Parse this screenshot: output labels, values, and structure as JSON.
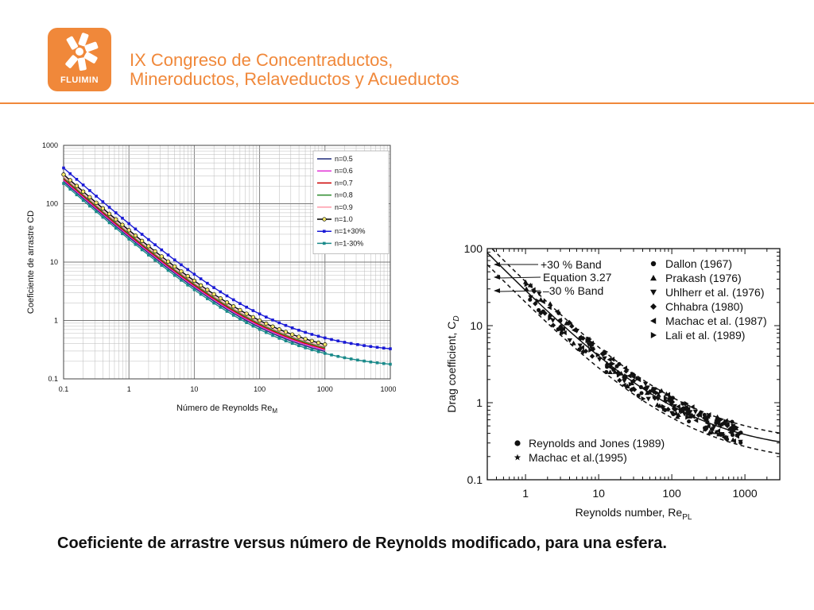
{
  "header": {
    "logo_text": "FLUIMIN",
    "line1": "IX Congreso de Concentraductos,",
    "line2": "Mineroductos, Relaveductos y Acueductos"
  },
  "caption": "Coeficiente de arrastre versus número de Reynolds modificado, para una esfera.",
  "colors": {
    "accent": "#f0883a"
  },
  "chart_data": [
    {
      "type": "line",
      "x_scale": "log",
      "y_scale": "log",
      "xlim": [
        0.1,
        10000
      ],
      "ylim": [
        0.1,
        1000
      ],
      "grid": true,
      "legend_position": "top-right",
      "ylabel": "Coeficiente de arrastre CD",
      "xlabel_main": "Número de Reynolds Re",
      "xlabel_sub": "M",
      "x_ticks": [
        "0.1",
        "1",
        "10",
        "100",
        "1000",
        "10000"
      ],
      "y_ticks": [
        "0.1",
        "1",
        "10",
        "100",
        "1000"
      ],
      "series": [
        {
          "name": "n=0.5",
          "color": "#1f2a7a",
          "factor": 0.95,
          "xmax": 1000,
          "marker": "none"
        },
        {
          "name": "n=0.6",
          "color": "#e233d6",
          "factor": 1.0,
          "xmax": 1000,
          "marker": "none"
        },
        {
          "name": "n=0.7",
          "color": "#cc0000",
          "factor": 1.05,
          "xmax": 1000,
          "marker": "none"
        },
        {
          "name": "n=0.8",
          "color": "#2a8a2a",
          "factor": 1.1,
          "xmax": 1000,
          "marker": "none"
        },
        {
          "name": "n=0.9",
          "color": "#ff9aa8",
          "factor": 1.15,
          "xmax": 1000,
          "marker": "none"
        },
        {
          "name": "n=1.0",
          "color": "#000000",
          "factor": 1.25,
          "xmax": 1000,
          "marker": "circle-yellow"
        },
        {
          "name": "n=1+30%",
          "color": "#1a1ad6",
          "factor": 1.62,
          "xmax": 10000,
          "marker": "square"
        },
        {
          "name": "n=1-30%",
          "color": "#1a8a8a",
          "factor": 0.88,
          "xmax": 10000,
          "marker": "square"
        }
      ]
    },
    {
      "type": "scatter",
      "x_scale": "log",
      "y_scale": "log",
      "xlim": [
        0.3,
        3000
      ],
      "ylim": [
        0.1,
        100
      ],
      "xlabel_main": "Reynolds number, Re",
      "xlabel_sub": "PL",
      "ylabel_main": "Drag coefficient, C",
      "ylabel_sub": "D",
      "x_ticks": [
        "1",
        "10",
        "100",
        "1000"
      ],
      "y_ticks": [
        "0.1",
        "1",
        "10",
        "100"
      ],
      "band_labels": [
        "+30 % Band",
        "Equation 3.27",
        "–30 % Band"
      ],
      "legend_top": [
        {
          "name": "Dallon (1967)",
          "marker": "circle"
        },
        {
          "name": "Prakash (1976)",
          "marker": "triangle-up"
        },
        {
          "name": "Uhlherr et al. (1976)",
          "marker": "triangle-down"
        },
        {
          "name": "Chhabra (1980)",
          "marker": "diamond"
        },
        {
          "name": "Machac et al. (1987)",
          "marker": "triangle-left"
        },
        {
          "name": "Lali et al. (1989)",
          "marker": "triangle-right"
        }
      ],
      "legend_bottom": [
        {
          "name": "Reynolds and Jones (1989)",
          "marker": "hexagon"
        },
        {
          "name": "Machac et al.(1995)",
          "marker": "star"
        }
      ]
    }
  ]
}
